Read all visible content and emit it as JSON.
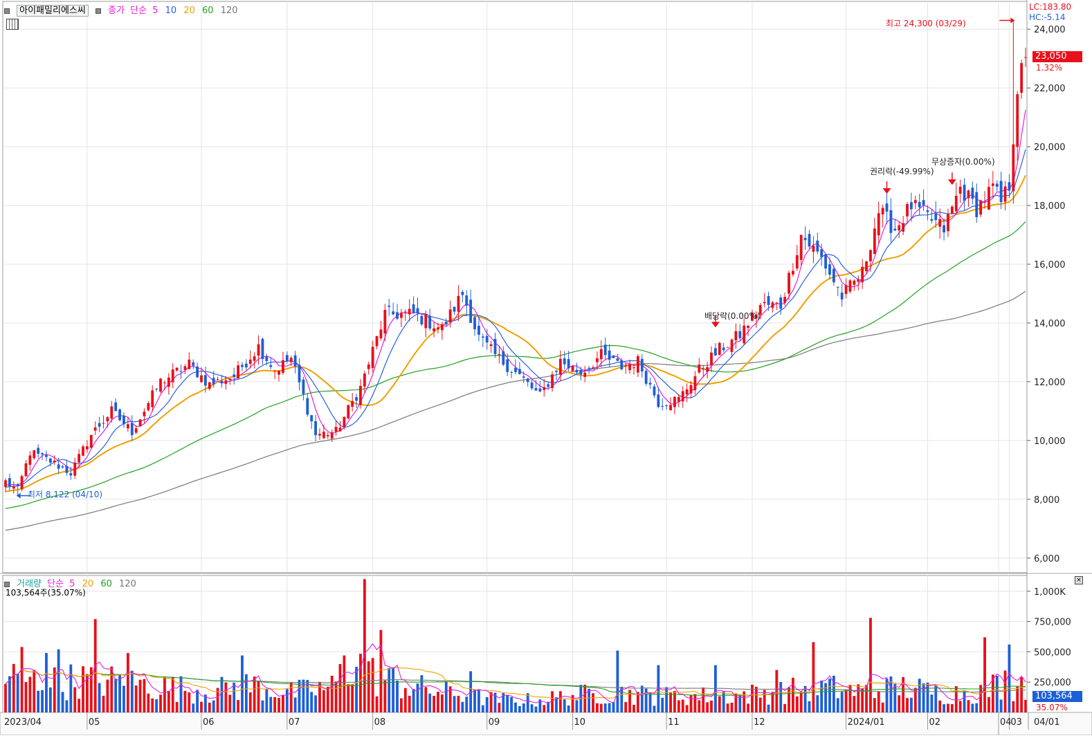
{
  "header": {
    "stock_name": "아이패밀리에스씨",
    "price_type": "종가",
    "ma_type": "단순",
    "ma_periods": [
      "5",
      "10",
      "20",
      "60",
      "120"
    ],
    "ma_colors": [
      "#e020e0",
      "#2a60e0",
      "#f0a000",
      "#20a020",
      "#777777"
    ]
  },
  "right_info": {
    "lc": "LC:183.80",
    "hc": "HC:-5.14",
    "last_price": "23,050",
    "change_pct": "1.32%"
  },
  "annotations": {
    "high": "최고 24,300 (03/29)",
    "low": "최저 8,122 (04/10)",
    "dividend": "배당락(0.00%)",
    "rights": "권리락(-49.99%)",
    "bonus": "무상증자(0.00%)"
  },
  "volume_header": {
    "title": "거래량",
    "ma_type": "단순",
    "ma_periods": [
      "5",
      "20",
      "60",
      "120"
    ],
    "current": "103,564주(35.07%)",
    "last_volume": "103,564",
    "last_pct": "35.07%"
  },
  "colors": {
    "up": "#e8101a",
    "down": "#1d5fd6",
    "ma5": "#e020e0",
    "ma10": "#2a60e0",
    "ma20": "#f0a000",
    "ma60": "#20a020",
    "ma120": "#777777",
    "grid": "#e4e4e4"
  },
  "chart_data": {
    "type": "candlestick",
    "x_labels": [
      "2023/04",
      "05",
      "06",
      "07",
      "08",
      "09",
      "10",
      "11",
      "12",
      "2024/01",
      "02",
      "03",
      "04",
      "04/01"
    ],
    "price_axis": [
      6000,
      8000,
      10000,
      12000,
      14000,
      16000,
      18000,
      20000,
      22000,
      24000
    ],
    "price_axis_labels": [
      "6,000",
      "8,000",
      "10,000",
      "12,000",
      "14,000",
      "16,000",
      "18,000",
      "20,000",
      "22,000",
      "24,000"
    ],
    "price_ylim": [
      5500,
      24900
    ],
    "volume_axis": [
      250000,
      500000,
      750000,
      1000000
    ],
    "volume_axis_labels": [
      "250,000",
      "500,000",
      "750,000",
      "1,000K"
    ],
    "volume_ylim": [
      0,
      1130000
    ],
    "close_anchors": [
      [
        0,
        8600
      ],
      [
        3,
        8300
      ],
      [
        6,
        9600
      ],
      [
        11,
        9300
      ],
      [
        16,
        8900
      ],
      [
        21,
        10200
      ],
      [
        26,
        11000
      ],
      [
        31,
        10300
      ],
      [
        38,
        12000
      ],
      [
        45,
        12600
      ],
      [
        50,
        11900
      ],
      [
        56,
        12200
      ],
      [
        62,
        13200
      ],
      [
        66,
        12400
      ],
      [
        70,
        12800
      ],
      [
        76,
        10200
      ],
      [
        81,
        10300
      ],
      [
        87,
        11800
      ],
      [
        93,
        14300
      ],
      [
        100,
        14300
      ],
      [
        107,
        13800
      ],
      [
        112,
        15000
      ],
      [
        116,
        13500
      ],
      [
        120,
        12900
      ],
      [
        126,
        12200
      ],
      [
        131,
        11500
      ],
      [
        136,
        12700
      ],
      [
        141,
        12300
      ],
      [
        146,
        12900
      ],
      [
        151,
        12500
      ],
      [
        155,
        12700
      ],
      [
        160,
        11300
      ],
      [
        165,
        11400
      ],
      [
        170,
        12400
      ],
      [
        175,
        13100
      ],
      [
        180,
        13600
      ],
      [
        185,
        14600
      ],
      [
        190,
        14600
      ],
      [
        195,
        17000
      ],
      [
        200,
        16200
      ],
      [
        205,
        14900
      ],
      [
        210,
        15700
      ],
      [
        214,
        17800
      ],
      [
        218,
        17200
      ],
      [
        222,
        18000
      ],
      [
        226,
        17600
      ],
      [
        230,
        17200
      ],
      [
        234,
        18600
      ],
      [
        238,
        17900
      ],
      [
        242,
        18600
      ],
      [
        244,
        18100
      ],
      [
        246,
        18700
      ],
      [
        248,
        22000
      ],
      [
        250,
        23050
      ]
    ],
    "volume_anchors": [
      [
        0,
        330000
      ],
      [
        10,
        270000
      ],
      [
        20,
        300000
      ],
      [
        30,
        270000
      ],
      [
        40,
        230000
      ],
      [
        50,
        190000
      ],
      [
        60,
        250000
      ],
      [
        70,
        180000
      ],
      [
        80,
        230000
      ],
      [
        85,
        480000
      ],
      [
        90,
        340000
      ],
      [
        100,
        230000
      ],
      [
        110,
        170000
      ],
      [
        120,
        120000
      ],
      [
        130,
        110000
      ],
      [
        140,
        160000
      ],
      [
        150,
        180000
      ],
      [
        160,
        150000
      ],
      [
        170,
        150000
      ],
      [
        180,
        160000
      ],
      [
        190,
        190000
      ],
      [
        200,
        230000
      ],
      [
        210,
        190000
      ],
      [
        220,
        230000
      ],
      [
        230,
        170000
      ],
      [
        240,
        200000
      ],
      [
        246,
        300000
      ],
      [
        250,
        103564
      ]
    ],
    "volume_spikes": [
      [
        4,
        540000
      ],
      [
        10,
        490000
      ],
      [
        13,
        520000
      ],
      [
        22,
        770000
      ],
      [
        30,
        490000
      ],
      [
        58,
        470000
      ],
      [
        83,
        470000
      ],
      [
        88,
        1100000
      ],
      [
        92,
        680000
      ],
      [
        114,
        340000
      ],
      [
        150,
        510000
      ],
      [
        160,
        390000
      ],
      [
        174,
        390000
      ],
      [
        189,
        350000
      ],
      [
        198,
        580000
      ],
      [
        212,
        780000
      ],
      [
        240,
        620000
      ],
      [
        246,
        560000
      ],
      [
        249,
        290000
      ]
    ],
    "highlights": {
      "high_value": 24300,
      "high_date": "03/29",
      "low_value": 8122,
      "low_date": "04/10",
      "last_close": 23050,
      "last_volume": 103564
    }
  }
}
